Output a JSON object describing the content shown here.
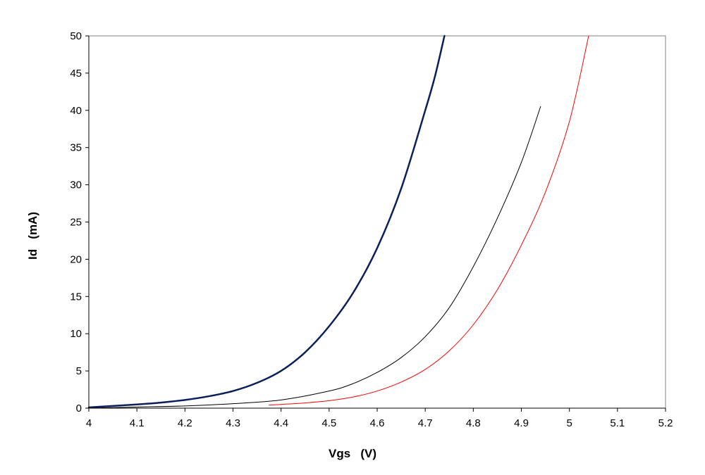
{
  "chart_data": {
    "type": "line",
    "title": "",
    "xlabel": "Vgs   (V)",
    "ylabel": "Id   (mA)",
    "xlim": [
      4,
      5.2
    ],
    "ylim": [
      0,
      50
    ],
    "x_ticks": [
      "4",
      "4.1",
      "4.2",
      "4.3",
      "4.4",
      "4.5",
      "4.6",
      "4.7",
      "4.8",
      "4.9",
      "5",
      "5.1",
      "5.2"
    ],
    "y_ticks": [
      "0",
      "5",
      "10",
      "15",
      "20",
      "25",
      "30",
      "35",
      "40",
      "45",
      "50"
    ],
    "grid": false,
    "legend": "none",
    "series": [
      {
        "color": "#0a1f5c",
        "stroke": "thick",
        "x": [
          4.0,
          4.05,
          4.1,
          4.15,
          4.2,
          4.25,
          4.3,
          4.35,
          4.4,
          4.45,
          4.5,
          4.55,
          4.6,
          4.65,
          4.7,
          4.72,
          4.74
        ],
        "y": [
          0.1,
          0.3,
          0.5,
          0.75,
          1.1,
          1.6,
          2.3,
          3.4,
          5.0,
          7.5,
          11.0,
          15.5,
          21.5,
          29.5,
          40.0,
          44.5,
          50.0
        ]
      },
      {
        "color": "#000000",
        "stroke": "thin",
        "x": [
          4.0,
          4.1,
          4.2,
          4.3,
          4.4,
          4.5,
          4.55,
          4.6,
          4.65,
          4.7,
          4.75,
          4.8,
          4.85,
          4.9,
          4.94
        ],
        "y": [
          0.0,
          0.15,
          0.3,
          0.6,
          1.1,
          2.3,
          3.3,
          4.8,
          6.8,
          9.6,
          13.5,
          19.0,
          25.5,
          33.0,
          40.5
        ]
      },
      {
        "color": "#ff0000",
        "stroke": "thin",
        "x": [
          4.375,
          4.4,
          4.45,
          4.5,
          4.55,
          4.6,
          4.65,
          4.7,
          4.75,
          4.8,
          4.85,
          4.9,
          4.95,
          5.0,
          5.04
        ],
        "y": [
          0.4,
          0.5,
          0.7,
          1.0,
          1.5,
          2.3,
          3.5,
          5.2,
          7.7,
          11.2,
          15.9,
          21.9,
          29.0,
          38.5,
          50.0
        ]
      }
    ]
  }
}
